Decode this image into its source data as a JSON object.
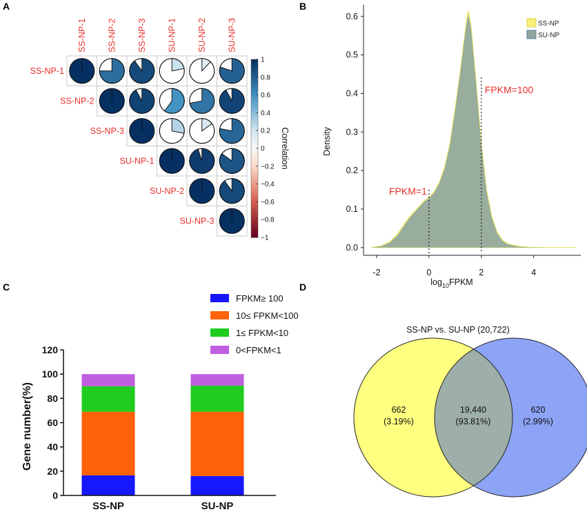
{
  "panels": {
    "a": "A",
    "b": "B",
    "c": "C",
    "d": "D"
  },
  "chart_data": [
    {
      "type": "heatmap",
      "panel": "A",
      "style": "pie-correlogram (upper triangle)",
      "labels": [
        "SS-NP-1",
        "SS-NP-2",
        "SS-NP-3",
        "SU-NP-1",
        "SU-NP-2",
        "SU-NP-3"
      ],
      "matrix": [
        [
          1.0,
          0.75,
          0.9,
          0.22,
          0.12,
          0.8
        ],
        [
          null,
          1.0,
          0.92,
          0.6,
          0.72,
          0.92
        ],
        [
          null,
          null,
          1.0,
          0.28,
          0.15,
          0.78
        ],
        [
          null,
          null,
          null,
          1.0,
          0.95,
          0.85
        ],
        [
          null,
          null,
          null,
          null,
          1.0,
          0.9
        ],
        [
          null,
          null,
          null,
          null,
          null,
          1.0
        ]
      ],
      "colorbar_label": "Correlation",
      "colorbar_ticks": [
        "1",
        "0.8",
        "0.6",
        "0.4",
        "0.2",
        "0",
        "−0.2",
        "−0.4",
        "−0.6",
        "−0.8",
        "−1"
      ],
      "range": [
        -1,
        1
      ]
    },
    {
      "type": "area",
      "panel": "B",
      "xlabel_main": "log",
      "xlabel_sub": "10",
      "xlabel_rest": "FPKM",
      "ylabel": "Density",
      "xlim": [
        -2.5,
        5.8
      ],
      "ylim": [
        -0.02,
        0.63
      ],
      "xticks": [
        "-2",
        "0",
        "2",
        "4"
      ],
      "yticks": [
        "0.0",
        "0.1",
        "0.2",
        "0.3",
        "0.4",
        "0.5",
        "0.6"
      ],
      "series": [
        {
          "name": "SS-NP",
          "color": "#f6f17a",
          "x": [
            -2.2,
            -1.8,
            -1.5,
            -1.2,
            -1.0,
            -0.8,
            -0.6,
            -0.4,
            -0.2,
            0.0,
            0.2,
            0.4,
            0.6,
            0.8,
            1.0,
            1.2,
            1.4,
            1.5,
            1.6,
            1.8,
            2.0,
            2.2,
            2.4,
            2.6,
            2.8,
            3.0,
            3.4,
            3.8,
            4.5,
            5.6
          ],
          "y": [
            0.0,
            0.005,
            0.015,
            0.035,
            0.055,
            0.075,
            0.09,
            0.105,
            0.12,
            0.13,
            0.145,
            0.17,
            0.21,
            0.27,
            0.36,
            0.46,
            0.57,
            0.615,
            0.58,
            0.43,
            0.27,
            0.15,
            0.08,
            0.04,
            0.02,
            0.01,
            0.004,
            0.001,
            0.0,
            0.0
          ]
        },
        {
          "name": "SU-NP",
          "color": "#8fa7a0",
          "x": [
            -2.2,
            -1.8,
            -1.5,
            -1.2,
            -1.0,
            -0.8,
            -0.6,
            -0.4,
            -0.2,
            0.0,
            0.2,
            0.4,
            0.6,
            0.8,
            1.0,
            1.2,
            1.4,
            1.5,
            1.6,
            1.8,
            2.0,
            2.2,
            2.4,
            2.6,
            2.8,
            3.0,
            3.4,
            3.8,
            4.5,
            5.6
          ],
          "y": [
            0.0,
            0.004,
            0.013,
            0.032,
            0.052,
            0.072,
            0.088,
            0.103,
            0.118,
            0.128,
            0.143,
            0.168,
            0.205,
            0.265,
            0.355,
            0.455,
            0.565,
            0.605,
            0.575,
            0.425,
            0.265,
            0.145,
            0.077,
            0.038,
            0.018,
            0.009,
            0.003,
            0.001,
            0.0,
            0.0
          ]
        }
      ],
      "annotations": [
        {
          "text": "FPKM=1",
          "x": 0
        },
        {
          "text": "FPKM=100",
          "x": 2
        }
      ]
    },
    {
      "type": "bar",
      "panel": "C",
      "stacked": true,
      "ylabel": "Gene number(%)",
      "ylim": [
        0,
        120
      ],
      "yticks": [
        "0",
        "20",
        "40",
        "60",
        "80",
        "100",
        "120"
      ],
      "categories": [
        "SS-NP",
        "SU-NP"
      ],
      "series": [
        {
          "name": "FPKM≥ 100",
          "color": "#1616ff",
          "values": [
            16.5,
            16.0
          ]
        },
        {
          "name": "10≤ FPKM<100",
          "color": "#ff6208",
          "values": [
            52.5,
            53.0
          ]
        },
        {
          "name": "1≤ FPKM<10",
          "color": "#1fcc1f",
          "values": [
            21.0,
            21.5
          ]
        },
        {
          "name": "0<FPKM<1",
          "color": "#bf5fdf",
          "values": [
            10.0,
            9.5
          ]
        }
      ]
    },
    {
      "type": "venn",
      "panel": "D",
      "title": "SS-NP vs. SU-NP (20,722)",
      "sets": [
        {
          "name": "SS-NP",
          "color": "#ffff80",
          "only_count": "662",
          "only_pct": "(3.19%)"
        },
        {
          "name": "SU-NP",
          "color": "#8ca3f6",
          "only_count": "620",
          "only_pct": "(2.99%)"
        }
      ],
      "overlap": {
        "count": "19,440",
        "pct": "(93.81%)"
      }
    }
  ]
}
